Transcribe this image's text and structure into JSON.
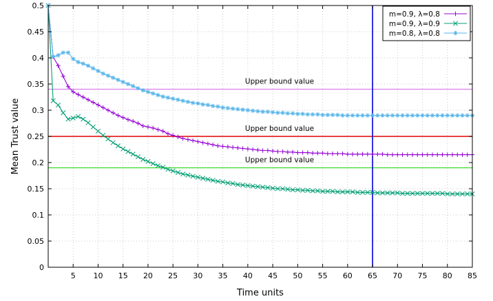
{
  "chart_data": {
    "type": "line",
    "xlabel": "Time units",
    "ylabel": "Mean Trust value",
    "xlim": [
      0,
      85
    ],
    "ylim": [
      0,
      0.5
    ],
    "x_ticks": [
      5,
      10,
      15,
      20,
      25,
      30,
      35,
      40,
      45,
      50,
      55,
      60,
      65,
      70,
      75,
      80,
      85
    ],
    "y_ticks": [
      0,
      0.05,
      0.1,
      0.15,
      0.2,
      0.25,
      0.3,
      0.35,
      0.4,
      0.45,
      0.5
    ],
    "x_tick_labels": [
      "5",
      "10",
      "15",
      "20",
      "25",
      "30",
      "35",
      "40",
      "45",
      "50",
      "55",
      "60",
      "65",
      "70",
      "75",
      "80",
      "85"
    ],
    "y_tick_labels": [
      "0",
      "0.05",
      "0.1",
      "0.15",
      "0.2",
      "0.25",
      "0.3",
      "0.35",
      "0.4",
      "0.45",
      "0.5"
    ],
    "grid": true,
    "legend_position": "top-right",
    "series": [
      {
        "name": "m=0.9, λ=0.8",
        "color": "#9400d3",
        "marker": "plus",
        "x": [
          0,
          1,
          2,
          3,
          4,
          5,
          6,
          7,
          8,
          9,
          10,
          11,
          12,
          13,
          14,
          15,
          16,
          17,
          18,
          19,
          20,
          21,
          22,
          23,
          24,
          25,
          26,
          27,
          28,
          29,
          30,
          31,
          32,
          33,
          34,
          35,
          36,
          37,
          38,
          39,
          40,
          41,
          42,
          43,
          44,
          45,
          46,
          47,
          48,
          49,
          50,
          51,
          52,
          53,
          54,
          55,
          56,
          57,
          58,
          59,
          60,
          61,
          62,
          63,
          64,
          65,
          66,
          67,
          68,
          69,
          70,
          71,
          72,
          73,
          74,
          75,
          76,
          77,
          78,
          79,
          80,
          81,
          82,
          83,
          84,
          85
        ],
        "y": [
          0.5,
          0.402,
          0.385,
          0.365,
          0.345,
          0.335,
          0.33,
          0.325,
          0.32,
          0.315,
          0.31,
          0.305,
          0.3,
          0.295,
          0.29,
          0.286,
          0.282,
          0.279,
          0.275,
          0.27,
          0.268,
          0.266,
          0.263,
          0.26,
          0.255,
          0.252,
          0.249,
          0.246,
          0.244,
          0.242,
          0.24,
          0.238,
          0.236,
          0.234,
          0.232,
          0.231,
          0.23,
          0.229,
          0.228,
          0.227,
          0.226,
          0.225,
          0.224,
          0.223,
          0.223,
          0.222,
          0.221,
          0.221,
          0.22,
          0.22,
          0.219,
          0.219,
          0.219,
          0.218,
          0.218,
          0.218,
          0.217,
          0.217,
          0.217,
          0.217,
          0.216,
          0.216,
          0.216,
          0.216,
          0.216,
          0.216,
          0.216,
          0.216,
          0.215,
          0.215,
          0.215,
          0.215,
          0.215,
          0.215,
          0.215,
          0.215,
          0.215,
          0.215,
          0.215,
          0.215,
          0.215,
          0.215,
          0.215,
          0.215,
          0.215,
          0.215
        ]
      },
      {
        "name": "m=0.9, λ=0.9",
        "color": "#009e73",
        "marker": "cross",
        "x": [
          0,
          1,
          2,
          3,
          4,
          5,
          6,
          7,
          8,
          9,
          10,
          11,
          12,
          13,
          14,
          15,
          16,
          17,
          18,
          19,
          20,
          21,
          22,
          23,
          24,
          25,
          26,
          27,
          28,
          29,
          30,
          31,
          32,
          33,
          34,
          35,
          36,
          37,
          38,
          39,
          40,
          41,
          42,
          43,
          44,
          45,
          46,
          47,
          48,
          49,
          50,
          51,
          52,
          53,
          54,
          55,
          56,
          57,
          58,
          59,
          60,
          61,
          62,
          63,
          64,
          65,
          66,
          67,
          68,
          69,
          70,
          71,
          72,
          73,
          74,
          75,
          76,
          77,
          78,
          79,
          80,
          81,
          82,
          83,
          84,
          85
        ],
        "y": [
          0.5,
          0.318,
          0.31,
          0.295,
          0.283,
          0.285,
          0.288,
          0.283,
          0.276,
          0.268,
          0.26,
          0.252,
          0.245,
          0.238,
          0.232,
          0.226,
          0.221,
          0.216,
          0.211,
          0.206,
          0.202,
          0.198,
          0.194,
          0.191,
          0.187,
          0.184,
          0.181,
          0.178,
          0.176,
          0.174,
          0.172,
          0.17,
          0.168,
          0.166,
          0.164,
          0.163,
          0.161,
          0.16,
          0.158,
          0.157,
          0.156,
          0.155,
          0.154,
          0.153,
          0.152,
          0.151,
          0.15,
          0.15,
          0.149,
          0.148,
          0.148,
          0.147,
          0.147,
          0.146,
          0.146,
          0.145,
          0.145,
          0.145,
          0.144,
          0.144,
          0.144,
          0.144,
          0.143,
          0.143,
          0.143,
          0.143,
          0.142,
          0.142,
          0.142,
          0.142,
          0.142,
          0.141,
          0.141,
          0.141,
          0.141,
          0.141,
          0.141,
          0.141,
          0.141,
          0.141,
          0.14,
          0.14,
          0.14,
          0.14,
          0.14,
          0.14
        ]
      },
      {
        "name": "m=0.8, λ=0.8",
        "color": "#56b4e9",
        "marker": "star",
        "x": [
          0,
          1,
          2,
          3,
          4,
          5,
          6,
          7,
          8,
          9,
          10,
          11,
          12,
          13,
          14,
          15,
          16,
          17,
          18,
          19,
          20,
          21,
          22,
          23,
          24,
          25,
          26,
          27,
          28,
          29,
          30,
          31,
          32,
          33,
          34,
          35,
          36,
          37,
          38,
          39,
          40,
          41,
          42,
          43,
          44,
          45,
          46,
          47,
          48,
          49,
          50,
          51,
          52,
          53,
          54,
          55,
          56,
          57,
          58,
          59,
          60,
          61,
          62,
          63,
          64,
          65,
          66,
          67,
          68,
          69,
          70,
          71,
          72,
          73,
          74,
          75,
          76,
          77,
          78,
          79,
          80,
          81,
          82,
          83,
          84,
          85
        ],
        "y": [
          0.5,
          0.402,
          0.405,
          0.41,
          0.41,
          0.398,
          0.392,
          0.389,
          0.385,
          0.38,
          0.375,
          0.37,
          0.366,
          0.362,
          0.358,
          0.354,
          0.35,
          0.346,
          0.342,
          0.338,
          0.335,
          0.332,
          0.329,
          0.326,
          0.324,
          0.322,
          0.32,
          0.318,
          0.316,
          0.314,
          0.313,
          0.311,
          0.31,
          0.308,
          0.307,
          0.305,
          0.304,
          0.303,
          0.302,
          0.301,
          0.3,
          0.299,
          0.298,
          0.297,
          0.297,
          0.296,
          0.295,
          0.295,
          0.294,
          0.294,
          0.293,
          0.293,
          0.292,
          0.292,
          0.292,
          0.291,
          0.291,
          0.291,
          0.291,
          0.29,
          0.29,
          0.29,
          0.29,
          0.29,
          0.29,
          0.29,
          0.29,
          0.29,
          0.29,
          0.29,
          0.29,
          0.29,
          0.29,
          0.29,
          0.29,
          0.29,
          0.29,
          0.29,
          0.29,
          0.29,
          0.29,
          0.29,
          0.29,
          0.29,
          0.29,
          0.29
        ]
      }
    ],
    "reference_lines": [
      {
        "orientation": "horizontal",
        "value": 0.34,
        "color": "#dd88ee",
        "label": "Upper bound value"
      },
      {
        "orientation": "horizontal",
        "value": 0.25,
        "color": "#e00000",
        "label": "Upper bound value"
      },
      {
        "orientation": "horizontal",
        "value": 0.19,
        "color": "#44dd33",
        "label": "Upper bound value"
      },
      {
        "orientation": "vertical",
        "value": 65,
        "color": "#0000dd",
        "label": ""
      }
    ]
  }
}
